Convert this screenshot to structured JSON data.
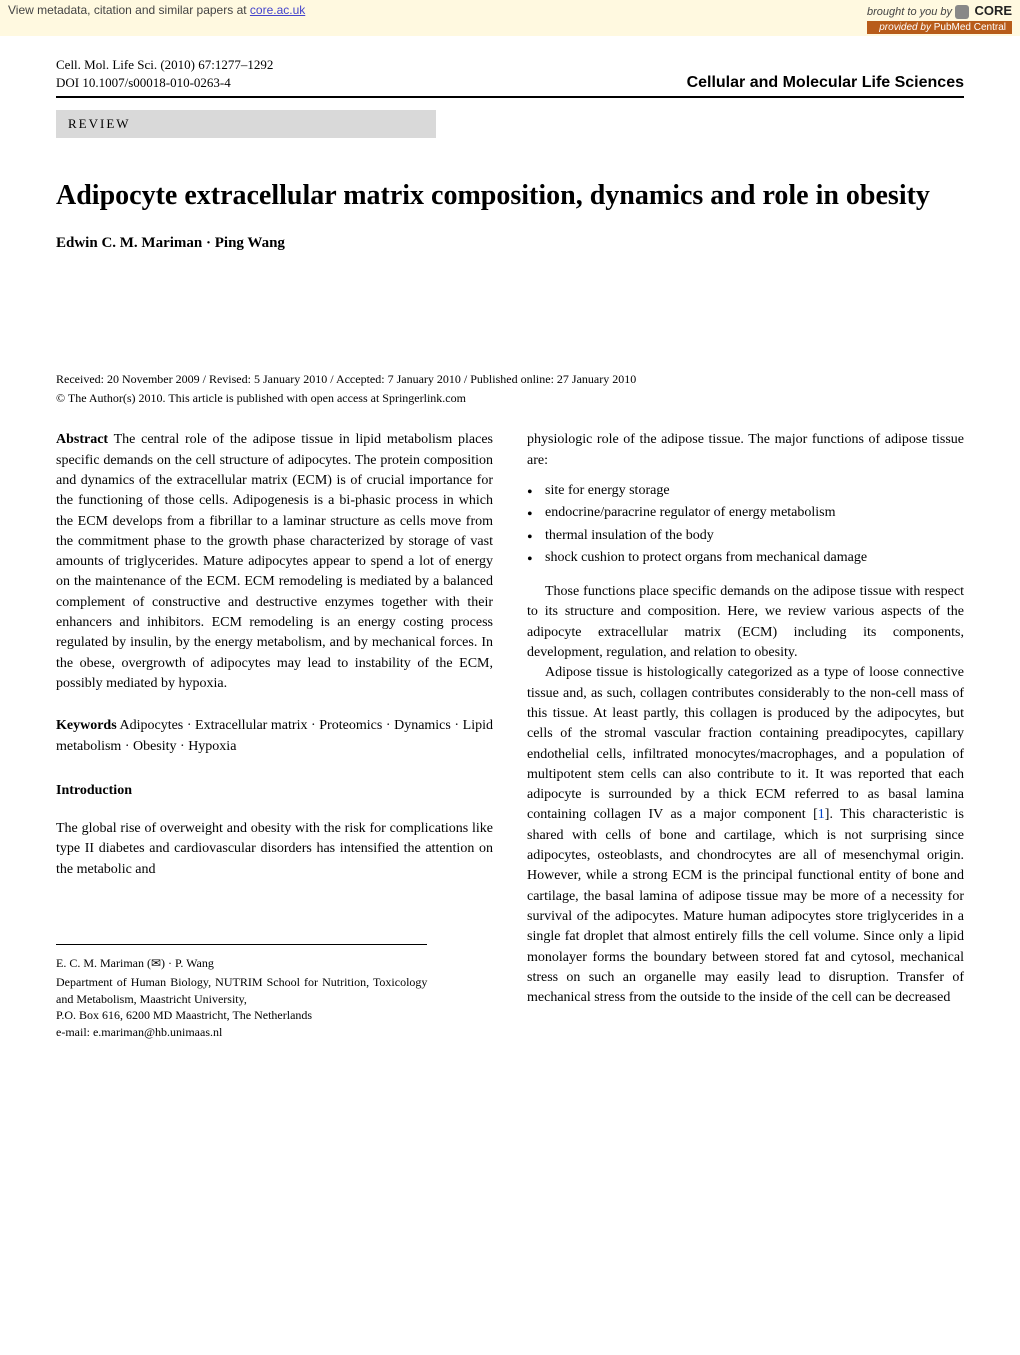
{
  "banner": {
    "left_prefix": "View metadata, citation and similar papers at ",
    "left_link": "core.ac.uk",
    "brought": "brought to you by ",
    "core": "CORE",
    "provided_prefix": "provided by ",
    "provided_source": "PubMed Central"
  },
  "header": {
    "journal_line": "Cell. Mol. Life Sci. (2010) 67:1277–1292",
    "doi_line": "DOI 10.1007/s00018-010-0263-4",
    "journal_name": "Cellular and Molecular Life Sciences",
    "review_label": "REVIEW"
  },
  "article": {
    "title": "Adipocyte extracellular matrix composition, dynamics and role in obesity",
    "authors": "Edwin C. M. Mariman · Ping Wang",
    "dates": "Received: 20 November 2009 / Revised: 5 January 2010 / Accepted: 7 January 2010 / Published online: 27 January 2010",
    "copyright": "© The Author(s) 2010. This article is published with open access at Springerlink.com"
  },
  "left_col": {
    "abstract_label": "Abstract",
    "abstract_text": "  The central role of the adipose tissue in lipid metabolism places specific demands on the cell structure of adipocytes. The protein composition and dynamics of the extracellular matrix (ECM) is of crucial importance for the functioning of those cells. Adipogenesis is a bi-phasic process in which the ECM develops from a fibrillar to a laminar structure as cells move from the commitment phase to the growth phase characterized by storage of vast amounts of triglycerides. Mature adipocytes appear to spend a lot of energy on the maintenance of the ECM. ECM remodeling is mediated by a balanced complement of constructive and destructive enzymes together with their enhancers and inhibitors. ECM remodeling is an energy costing process regulated by insulin, by the energy metabolism, and by mechanical forces. In the obese, overgrowth of adipocytes may lead to instability of the ECM, possibly mediated by hypoxia.",
    "keywords_label": "Keywords",
    "keywords_text": "  Adipocytes · Extracellular matrix · Proteomics · Dynamics · Lipid metabolism · Obesity · Hypoxia",
    "intro_heading": "Introduction",
    "intro_text": "The global rise of overweight and obesity with the risk for complications like type II diabetes and cardiovascular disorders has intensified the attention on the metabolic and"
  },
  "affiliation": {
    "authors_line": "E. C. M. Mariman (✉) · P. Wang",
    "dept": "Department of Human Biology, NUTRIM School for Nutrition, Toxicology and Metabolism, Maastricht University,",
    "address": "P.O. Box 616, 6200 MD Maastricht, The Netherlands",
    "email": "e-mail: e.mariman@hb.unimaas.nl"
  },
  "right_col": {
    "top": "physiologic role of the adipose tissue. The major functions of adipose tissue are:",
    "functions": [
      "site for energy storage",
      "endocrine/paracrine regulator of energy metabolism",
      "thermal insulation of the body",
      "shock cushion to protect organs from mechanical damage"
    ],
    "para2": "Those functions place specific demands on the adipose tissue with respect to its structure and composition. Here, we review various aspects of the adipocyte extracellular matrix (ECM) including its components, development, regulation, and relation to obesity.",
    "para3_a": "Adipose tissue is histologically categorized as a type of loose connective tissue and, as such, collagen contributes considerably to the non-cell mass of this tissue. At least partly, this collagen is produced by the adipocytes, but cells of the stromal vascular fraction containing preadipocytes, capillary endothelial cells, infiltrated monocytes/macrophages, and a population of multipotent stem cells can also contribute to it. It was reported that each adipocyte is surrounded by a thick ECM referred to as basal lamina containing collagen IV as a major component [",
    "ref1": "1",
    "para3_b": "]. This characteristic is shared with cells of bone and cartilage, which is not surprising since adipocytes, osteoblasts, and chondrocytes are all of mesenchymal origin. However, while a strong ECM is the principal functional entity of bone and cartilage, the basal lamina of adipose tissue may be more of a necessity for survival of the adipocytes. Mature human adipocytes store triglycerides in a single fat droplet that almost entirely fills the cell volume. Since only a lipid monolayer forms the boundary between stored fat and cytosol, mechanical stress on such an organelle may easily lead to disruption. Transfer of mechanical stress from the outside to the inside of the cell can be decreased"
  }
}
